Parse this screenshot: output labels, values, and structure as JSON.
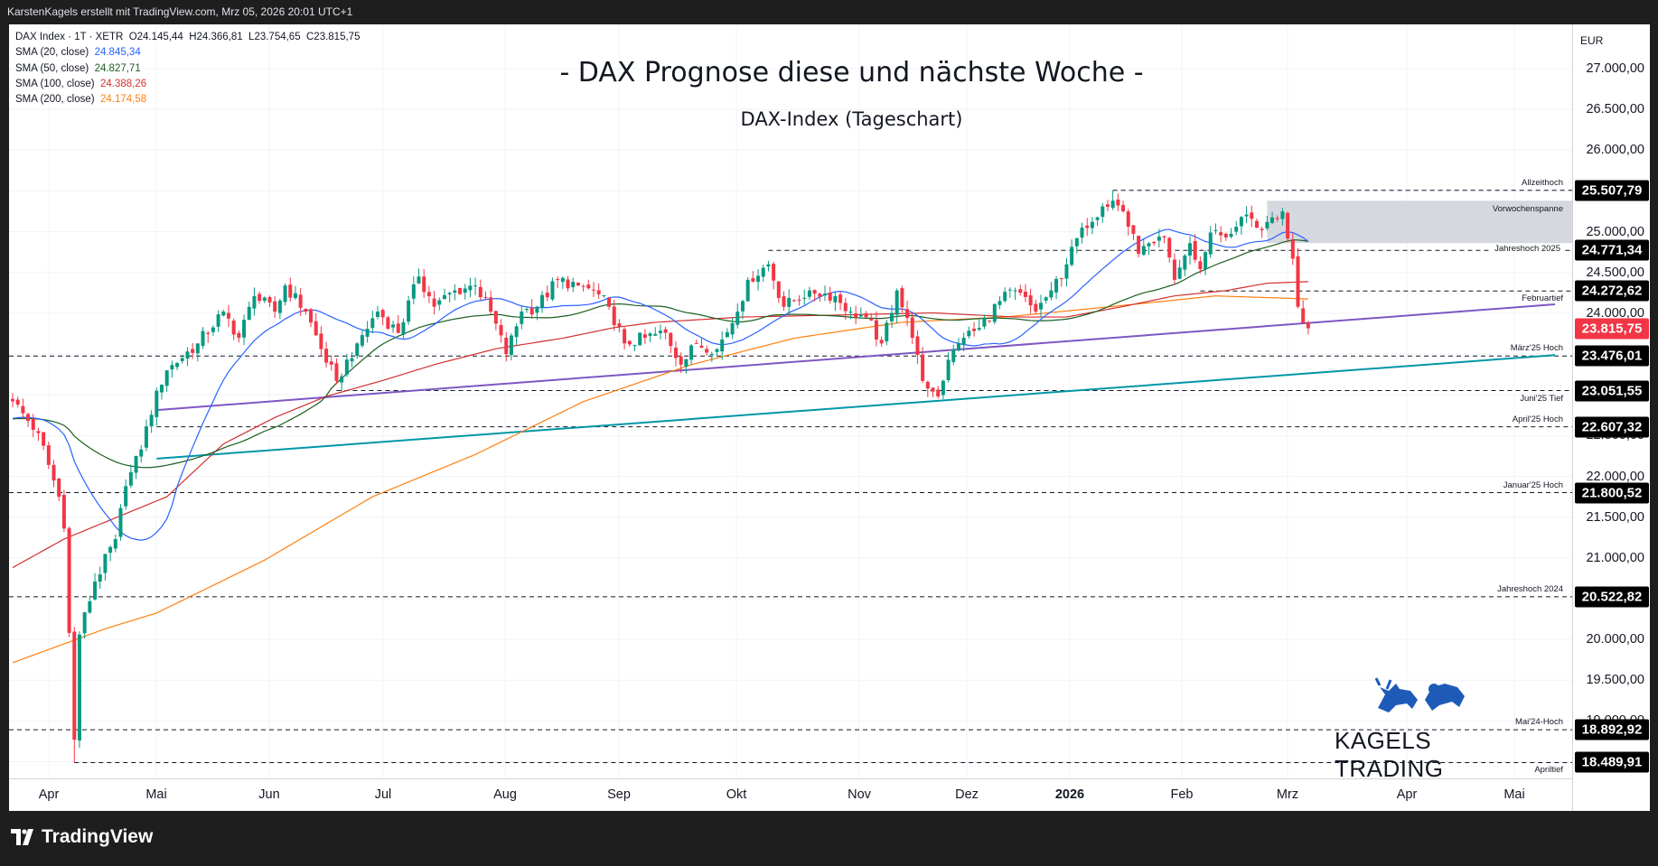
{
  "topbar": {
    "text": "KarstenKagels erstellt mit TradingView.com, Mrz 05, 2026 20:01 UTC+1"
  },
  "legend": {
    "symbol": "DAX Index · 1T · XETR",
    "open": "O24.145,44",
    "high": "H24.366,81",
    "low": "L23.754,65",
    "close": "C23.815,75",
    "smas": [
      {
        "label": "SMA (20, close)",
        "value": "24.845,34",
        "color": "#2962ff"
      },
      {
        "label": "SMA (50, close)",
        "value": "24.827,71",
        "color": "#1b5e20"
      },
      {
        "label": "SMA (100, close)",
        "value": "24.388,26",
        "color": "#d32f2f"
      },
      {
        "label": "SMA (200, close)",
        "value": "24.174,58",
        "color": "#ff7f0e"
      }
    ]
  },
  "title": "- DAX Prognose diese und nächste Woche -",
  "subtitle": "DAX-Index (Tageschart)",
  "axis": {
    "currency": "EUR",
    "ticks": [
      "27.000,00",
      "26.500,00",
      "26.000,00",
      "25.500,00",
      "25.000,00",
      "24.500,00",
      "24.000,00",
      "23.500,00",
      "23.000,00",
      "22.500,00",
      "22.000,00",
      "21.500,00",
      "21.000,00",
      "20.500,00",
      "20.000,00",
      "19.500,00",
      "19.000,00",
      "18.500,00"
    ],
    "tick_values": [
      27000,
      26500,
      26000,
      25500,
      25000,
      24500,
      24000,
      23500,
      23000,
      22500,
      22000,
      21500,
      21000,
      20500,
      20000,
      19500,
      19000,
      18500
    ]
  },
  "current_price": {
    "value": 23815.75,
    "label": "23.815,75",
    "color": "#f23645"
  },
  "levels": [
    {
      "value": 25507.79,
      "label": "25.507,79",
      "name": "Allzeithoch",
      "from_day": 214,
      "pos": "above"
    },
    {
      "value": 24771.34,
      "label": "24.771,34",
      "name": "Jahreshoch 2025",
      "from_day": 147,
      "pos": "on"
    },
    {
      "value": 24272.62,
      "label": "24.272,62",
      "name": "Februartief",
      "from_day": 231,
      "pos": "below"
    },
    {
      "value": 23476.01,
      "label": "23.476,01",
      "name": "März'25 Hoch",
      "from_day": -3,
      "pos": "above"
    },
    {
      "value": 23051.55,
      "label": "23.051,55",
      "name": "Juni'25 Tief",
      "from_day": 63,
      "pos": "below"
    },
    {
      "value": 22607.32,
      "label": "22.607,32",
      "name": "April'25 Hoch",
      "from_day": 28,
      "pos": "above"
    },
    {
      "value": 21800.52,
      "label": "21.800,52",
      "name": "Januar'25 Hoch",
      "from_day": -3,
      "pos": "above"
    },
    {
      "value": 20522.82,
      "label": "20.522,82",
      "name": "Jahreshoch 2024",
      "from_day": -3,
      "pos": "above"
    },
    {
      "value": 18892.92,
      "label": "18.892,92",
      "name": "Mai'24-Hoch",
      "from_day": -3,
      "pos": "above"
    },
    {
      "value": 18489.91,
      "label": "18.489,91",
      "name": "Apriltief",
      "from_day": 12,
      "pos": "below"
    }
  ],
  "range_box": {
    "label": "Vorwochenspanne",
    "high": 25380,
    "low": 24860,
    "from_day": 244
  },
  "trendlines": [
    {
      "name": "purple-trendline",
      "color": "#7e57c2",
      "from": [
        28,
        22813
      ],
      "to": [
        300,
        24109
      ]
    },
    {
      "name": "teal-trendline",
      "color": "#0097a7",
      "from": [
        28,
        22217
      ],
      "to": [
        300,
        23487
      ]
    }
  ],
  "months": [
    "Apr",
    "Mai",
    "Jun",
    "Jul",
    "Aug",
    "Sep",
    "Okt",
    "Nov",
    "Dez",
    "2026",
    "Feb",
    "Mrz",
    "Apr",
    "Mai"
  ],
  "chart_data": {
    "type": "candlestick",
    "colors": {
      "up": "#089981",
      "down": "#f23645"
    },
    "close_keypoints": [
      [
        0,
        22920
      ],
      [
        5,
        22530
      ],
      [
        9,
        21750
      ],
      [
        10,
        21360
      ],
      [
        12,
        18770
      ],
      [
        13,
        20060
      ],
      [
        16,
        20710
      ],
      [
        20,
        21230
      ],
      [
        22,
        21880
      ],
      [
        25,
        22330
      ],
      [
        28,
        23050
      ],
      [
        30,
        23300
      ],
      [
        36,
        23630
      ],
      [
        41,
        24020
      ],
      [
        44,
        23700
      ],
      [
        47,
        24210
      ],
      [
        51,
        24020
      ],
      [
        53,
        24340
      ],
      [
        57,
        24020
      ],
      [
        60,
        23560
      ],
      [
        63,
        23170
      ],
      [
        67,
        23630
      ],
      [
        71,
        24020
      ],
      [
        75,
        23760
      ],
      [
        79,
        24450
      ],
      [
        82,
        24080
      ],
      [
        86,
        24280
      ],
      [
        90,
        24340
      ],
      [
        93,
        24020
      ],
      [
        96,
        23500
      ],
      [
        99,
        24020
      ],
      [
        102,
        24080
      ],
      [
        106,
        24410
      ],
      [
        110,
        24340
      ],
      [
        113,
        24280
      ],
      [
        116,
        24080
      ],
      [
        119,
        23630
      ],
      [
        123,
        23700
      ],
      [
        127,
        23760
      ],
      [
        130,
        23370
      ],
      [
        133,
        23630
      ],
      [
        137,
        23560
      ],
      [
        141,
        24020
      ],
      [
        143,
        24410
      ],
      [
        147,
        24600
      ],
      [
        150,
        24080
      ],
      [
        155,
        24280
      ],
      [
        160,
        24210
      ],
      [
        163,
        24020
      ],
      [
        166,
        23950
      ],
      [
        169,
        23630
      ],
      [
        172,
        24280
      ],
      [
        175,
        23700
      ],
      [
        177,
        23170
      ],
      [
        180,
        22980
      ],
      [
        182,
        23430
      ],
      [
        185,
        23700
      ],
      [
        188,
        23820
      ],
      [
        192,
        24150
      ],
      [
        195,
        24280
      ],
      [
        199,
        24020
      ],
      [
        202,
        24280
      ],
      [
        205,
        24600
      ],
      [
        208,
        25050
      ],
      [
        212,
        25310
      ],
      [
        214,
        25380
      ],
      [
        216,
        25250
      ],
      [
        219,
        24730
      ],
      [
        222,
        24860
      ],
      [
        224,
        24930
      ],
      [
        226,
        24410
      ],
      [
        229,
        24860
      ],
      [
        231,
        24540
      ],
      [
        233,
        24990
      ],
      [
        236,
        24930
      ],
      [
        239,
        25180
      ],
      [
        242,
        25050
      ],
      [
        244,
        25120
      ],
      [
        247,
        25250
      ],
      [
        249,
        24670
      ],
      [
        250,
        24080
      ],
      [
        252,
        23815.75
      ]
    ],
    "wicks": [
      [
        12,
        18489.91,
        "low"
      ],
      [
        214,
        25507.79,
        "high"
      ]
    ],
    "sma100_keypoints": [
      [
        0,
        20881
      ],
      [
        10,
        21231
      ],
      [
        20,
        21491
      ],
      [
        30,
        21750
      ],
      [
        41,
        22398
      ],
      [
        51,
        22722
      ],
      [
        61,
        22981
      ],
      [
        72,
        23176
      ],
      [
        82,
        23370
      ],
      [
        94,
        23565
      ],
      [
        107,
        23694
      ],
      [
        117,
        23824
      ],
      [
        125,
        23889
      ],
      [
        142,
        23954
      ],
      [
        162,
        23980
      ],
      [
        179,
        24005
      ],
      [
        195,
        23954
      ],
      [
        205,
        23954
      ],
      [
        216,
        24083
      ],
      [
        226,
        24213
      ],
      [
        236,
        24278
      ],
      [
        244,
        24368
      ],
      [
        252,
        24388
      ]
    ],
    "sma200_keypoints": [
      [
        0,
        19715
      ],
      [
        18,
        20130
      ],
      [
        28,
        20324
      ],
      [
        49,
        20972
      ],
      [
        70,
        21750
      ],
      [
        90,
        22268
      ],
      [
        111,
        22916
      ],
      [
        132,
        23370
      ],
      [
        152,
        23694
      ],
      [
        173,
        23889
      ],
      [
        193,
        23954
      ],
      [
        214,
        24083
      ],
      [
        234,
        24213
      ],
      [
        252,
        24175
      ]
    ]
  },
  "logo": {
    "text": "KAGELS TRADING"
  },
  "footer": {
    "brand": "TradingView"
  }
}
